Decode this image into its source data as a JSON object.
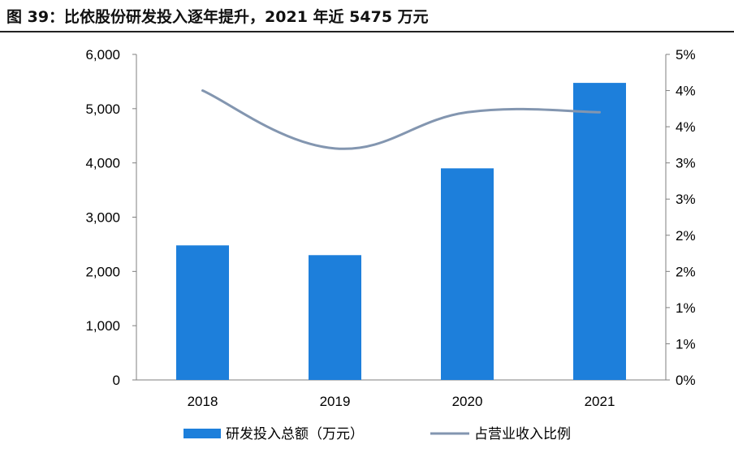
{
  "chart_data": {
    "type": "bar",
    "title": "图 39：比依股份研发投入逐年提升，2021 年近 5475 万元",
    "categories": [
      "2018",
      "2019",
      "2020",
      "2021"
    ],
    "series": [
      {
        "name": "研发投入总额（万元）",
        "type": "bar",
        "axis": "left",
        "values": [
          2480,
          2300,
          3900,
          5475
        ],
        "color": "#1d7fdb"
      },
      {
        "name": "占营业收入比例",
        "type": "line",
        "axis": "right",
        "values": [
          4.0,
          3.2,
          3.7,
          3.7
        ],
        "color": "#8396b0"
      }
    ],
    "y_left": {
      "ylim": [
        0,
        6000
      ],
      "ticks": [
        "0",
        "1,000",
        "2,000",
        "3,000",
        "4,000",
        "5,000",
        "6,000"
      ]
    },
    "y_right": {
      "ylim": [
        0,
        4.5
      ],
      "ticks": [
        "0%",
        "1%",
        "1%",
        "2%",
        "2%",
        "3%",
        "3%",
        "4%",
        "4%",
        "5%"
      ]
    },
    "grid": false,
    "legend": "bottom"
  }
}
